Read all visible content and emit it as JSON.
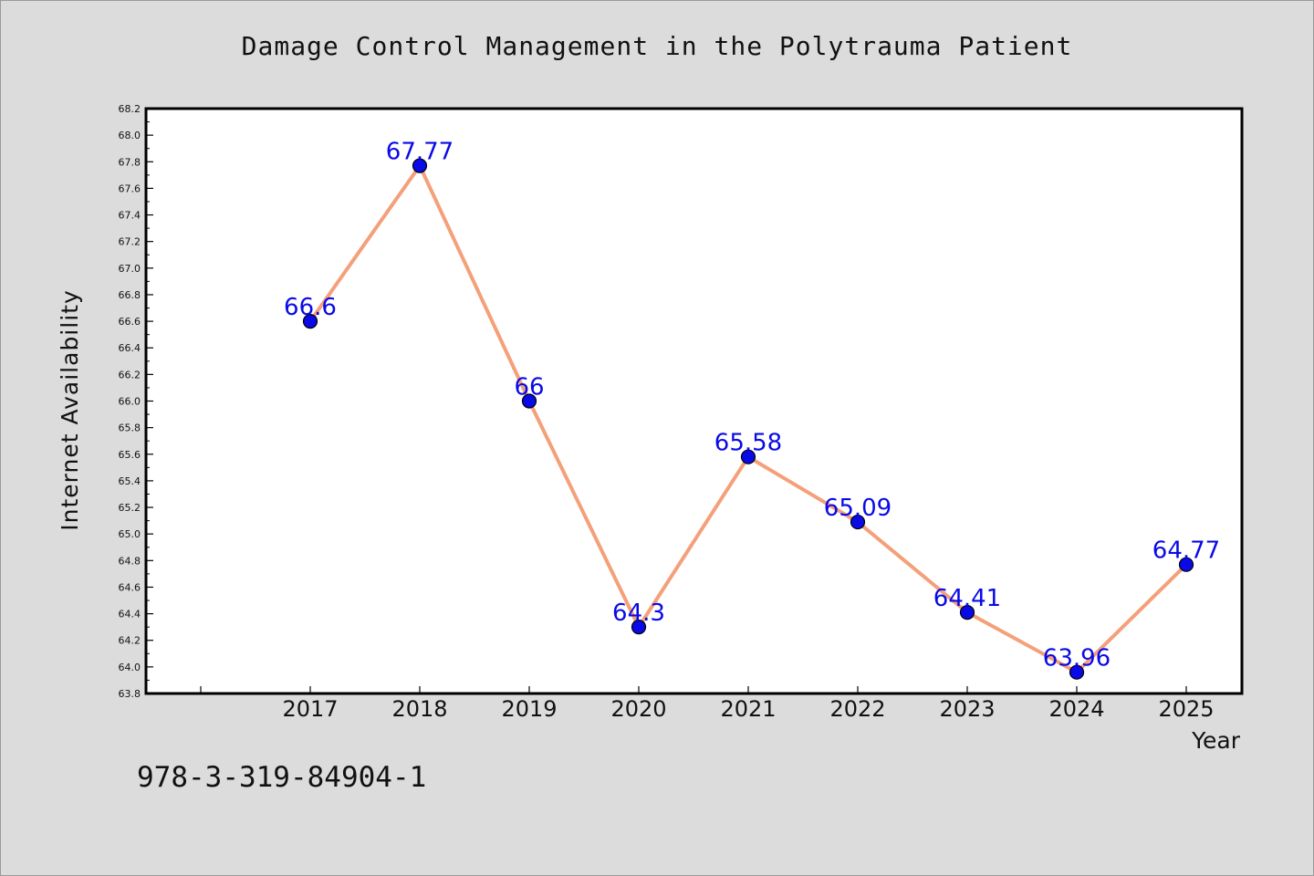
{
  "chart_data": {
    "type": "line",
    "title": "Damage Control Management in the Polytrauma Patient",
    "xlabel": "Year",
    "ylabel": "Internet Availability",
    "categories": [
      "2017",
      "2018",
      "2019",
      "2020",
      "2021",
      "2022",
      "2023",
      "2024",
      "2025"
    ],
    "series": [
      {
        "values": [
          66.6,
          67.77,
          66,
          64.3,
          65.58,
          65.09,
          64.41,
          63.96,
          64.77
        ]
      }
    ],
    "data_labels": [
      "66.6",
      "67.77",
      "66",
      "64.3",
      "65.58",
      "65.09",
      "64.41",
      "63.96",
      "64.77"
    ],
    "ylim": [
      63.8,
      68.2
    ],
    "y_ticks": [
      "63.8",
      "64.0",
      "64.2",
      "64.4",
      "64.6",
      "64.8",
      "65.0",
      "65.2",
      "65.4",
      "65.6",
      "65.8",
      "66.0",
      "66.2",
      "66.4",
      "66.6",
      "66.8",
      "67.0",
      "67.2",
      "67.4",
      "67.6",
      "67.8",
      "68.0",
      "68.2"
    ],
    "grid": false,
    "line_color": "#f4a07a",
    "marker_color": "#0a0ae6",
    "label_color": "#0a0ae6"
  },
  "footnote": "978-3-319-84904-1"
}
